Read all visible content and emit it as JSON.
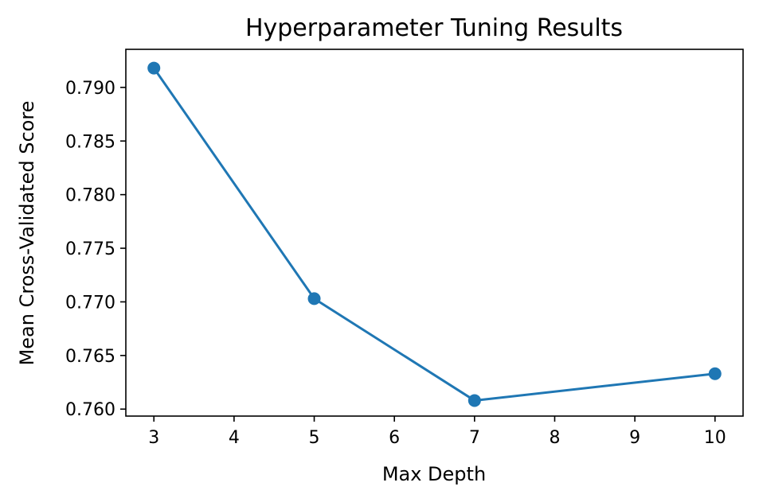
{
  "chart_data": {
    "type": "line",
    "title": "Hyperparameter Tuning Results",
    "xlabel": "Max Depth",
    "ylabel": "Mean Cross-Validated Score",
    "xlim": [
      2.65,
      10.35
    ],
    "ylim": [
      0.75935,
      0.79355
    ],
    "xticks": [
      3,
      4,
      5,
      6,
      7,
      8,
      9,
      10
    ],
    "xtick_labels": [
      "3",
      "4",
      "5",
      "6",
      "7",
      "8",
      "9",
      "10"
    ],
    "yticks": [
      0.76,
      0.765,
      0.77,
      0.775,
      0.78,
      0.785,
      0.79
    ],
    "ytick_labels": [
      "0.760",
      "0.765",
      "0.770",
      "0.775",
      "0.780",
      "0.785",
      "0.790"
    ],
    "grid": false,
    "series": [
      {
        "color": "#1f77b4",
        "marker": "circle",
        "x": [
          3,
          5,
          7,
          10
        ],
        "values": [
          0.7918,
          0.7703,
          0.7608,
          0.7633
        ]
      }
    ]
  }
}
